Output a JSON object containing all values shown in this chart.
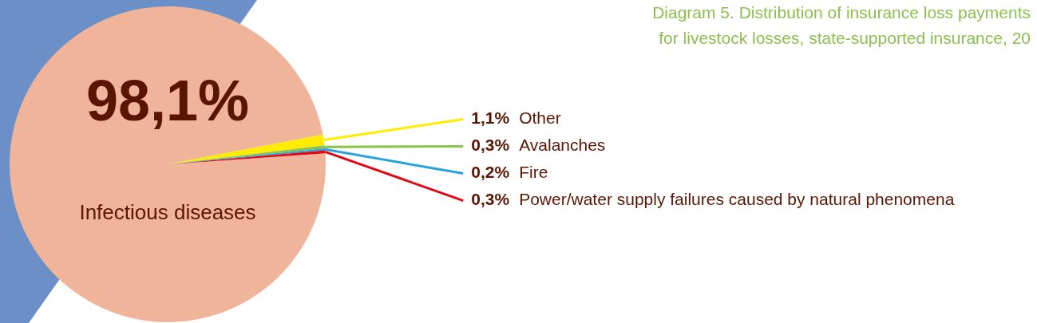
{
  "chart_data": {
    "type": "pie",
    "title": "Diagram 5. Distribution of insurance loss payments",
    "subtitle": "for livestock losses, state-supported insurance, 20",
    "categories": [
      "Infectious diseases",
      "Other",
      "Avalanches",
      "Fire",
      "Power/water supply failures caused by natural phenomena"
    ],
    "values": [
      98.1,
      1.1,
      0.3,
      0.2,
      0.3
    ],
    "value_labels": [
      "98,1%",
      "1,1%",
      "0,3%",
      "0,2%",
      "0,3%"
    ],
    "colors": [
      "#f0b49a",
      "#ffec00",
      "#8bc34a",
      "#29a3dd",
      "#e30613"
    ],
    "legend": false
  }
}
